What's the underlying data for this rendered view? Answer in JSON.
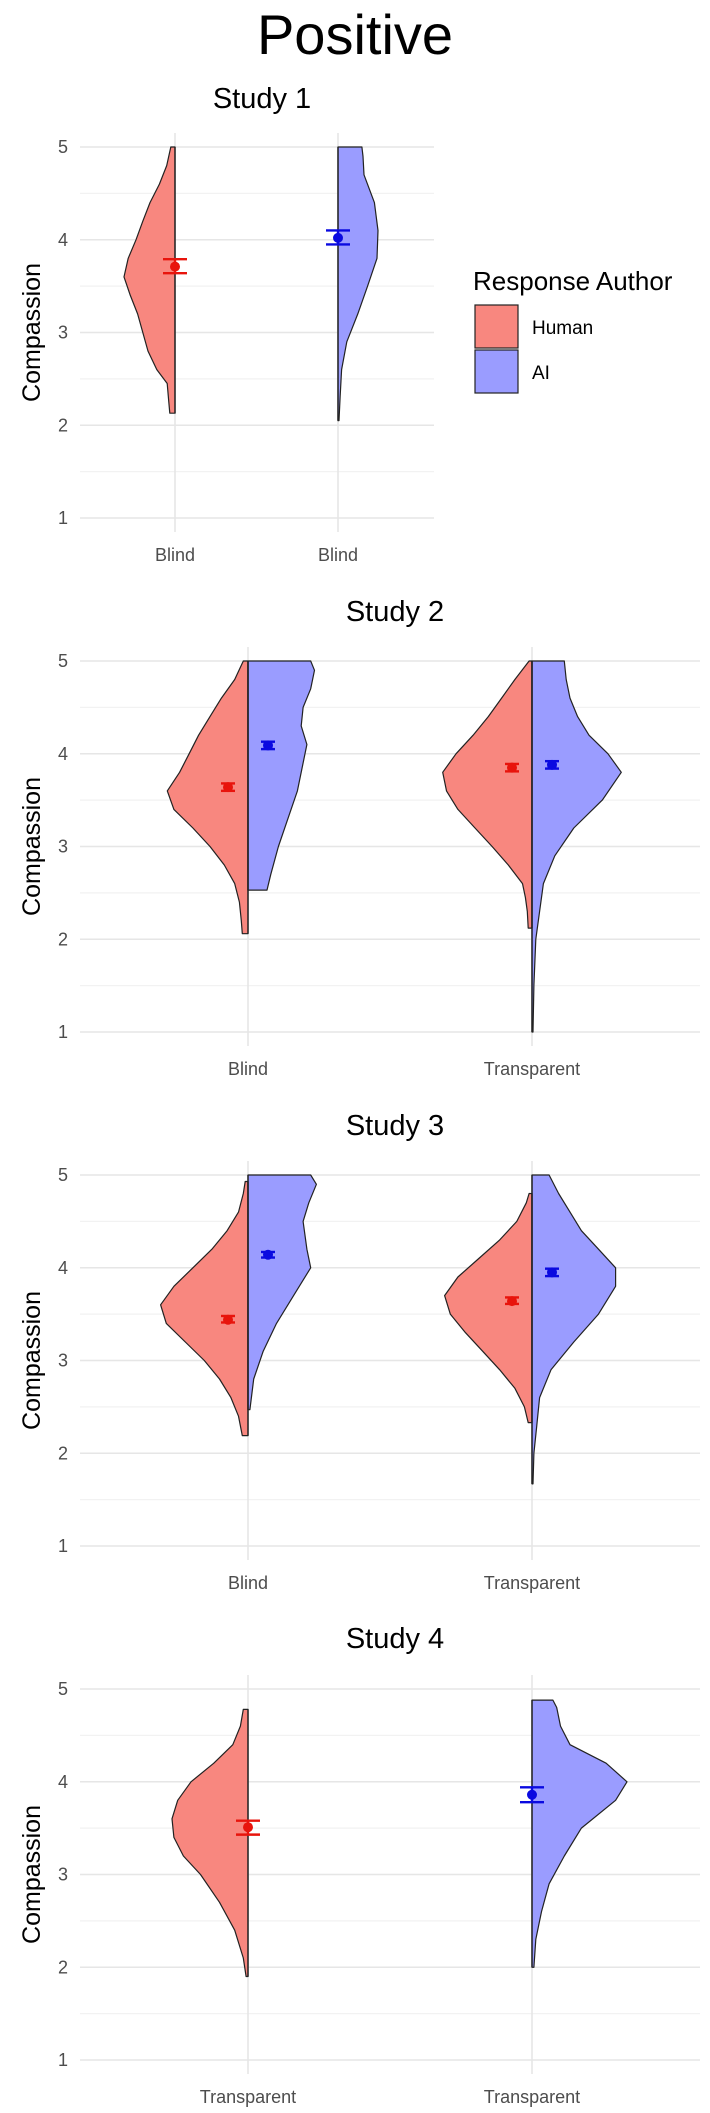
{
  "page_title": "Positive",
  "chart_data": [
    {
      "type": "split-violin",
      "title": "Study 1",
      "ylabel": "Compassion",
      "ylim": [
        1,
        5
      ],
      "yticks": [
        1,
        2,
        3,
        4,
        5
      ],
      "categories": [
        "Blind",
        "Blind"
      ],
      "groups": [
        {
          "name": "Human",
          "category_index": 0,
          "side": "left",
          "mean": 3.71,
          "ci": [
            3.64,
            3.79
          ],
          "ymin": 2.13,
          "ymax": 5.0,
          "profile": [
            [
              2.13,
              0.1
            ],
            [
              2.25,
              0.12
            ],
            [
              2.45,
              0.15
            ],
            [
              2.6,
              0.35
            ],
            [
              2.8,
              0.52
            ],
            [
              3.0,
              0.62
            ],
            [
              3.2,
              0.72
            ],
            [
              3.4,
              0.86
            ],
            [
              3.6,
              0.98
            ],
            [
              3.8,
              0.9
            ],
            [
              4.0,
              0.75
            ],
            [
              4.2,
              0.62
            ],
            [
              4.4,
              0.48
            ],
            [
              4.6,
              0.3
            ],
            [
              4.8,
              0.16
            ],
            [
              5.0,
              0.08
            ]
          ]
        },
        {
          "name": "AI",
          "category_index": 1,
          "side": "right",
          "mean": 4.02,
          "ci": [
            3.95,
            4.1
          ],
          "ymin": 2.05,
          "ymax": 5.0,
          "profile": [
            [
              2.05,
              0.02
            ],
            [
              2.3,
              0.04
            ],
            [
              2.6,
              0.07
            ],
            [
              2.9,
              0.17
            ],
            [
              3.2,
              0.38
            ],
            [
              3.5,
              0.57
            ],
            [
              3.8,
              0.75
            ],
            [
              4.1,
              0.77
            ],
            [
              4.4,
              0.7
            ],
            [
              4.7,
              0.5
            ],
            [
              4.9,
              0.48
            ],
            [
              5.0,
              0.46
            ]
          ]
        }
      ]
    },
    {
      "type": "split-violin",
      "title": "Study 2",
      "ylabel": "Compassion",
      "ylim": [
        1,
        5
      ],
      "yticks": [
        1,
        2,
        3,
        4,
        5
      ],
      "categories": [
        "Blind",
        "Transparent"
      ],
      "groups": [
        {
          "name": "Human",
          "category_index": 0,
          "side": "left",
          "mean": 3.64,
          "ci": [
            3.6,
            3.68
          ],
          "ymin": 2.06,
          "ymax": 5.0,
          "profile": [
            [
              2.06,
              0.06
            ],
            [
              2.2,
              0.07
            ],
            [
              2.4,
              0.09
            ],
            [
              2.6,
              0.14
            ],
            [
              2.8,
              0.25
            ],
            [
              3.0,
              0.4
            ],
            [
              3.2,
              0.58
            ],
            [
              3.4,
              0.78
            ],
            [
              3.6,
              0.85
            ],
            [
              3.8,
              0.72
            ],
            [
              4.0,
              0.62
            ],
            [
              4.2,
              0.52
            ],
            [
              4.4,
              0.4
            ],
            [
              4.6,
              0.28
            ],
            [
              4.8,
              0.14
            ],
            [
              5.0,
              0.05
            ]
          ]
        },
        {
          "name": "AI",
          "category_index": 0,
          "side": "right",
          "mean": 4.09,
          "ci": [
            4.05,
            4.13
          ],
          "ymin": 2.53,
          "ymax": 5.0,
          "profile": [
            [
              2.53,
              0.2
            ],
            [
              2.7,
              0.24
            ],
            [
              3.0,
              0.32
            ],
            [
              3.3,
              0.42
            ],
            [
              3.6,
              0.52
            ],
            [
              3.9,
              0.58
            ],
            [
              4.1,
              0.62
            ],
            [
              4.3,
              0.56
            ],
            [
              4.5,
              0.58
            ],
            [
              4.7,
              0.66
            ],
            [
              4.9,
              0.7
            ],
            [
              5.0,
              0.66
            ]
          ]
        },
        {
          "name": "Human",
          "category_index": 1,
          "side": "left",
          "mean": 3.85,
          "ci": [
            3.81,
            3.89
          ],
          "ymin": 2.12,
          "ymax": 5.0,
          "profile": [
            [
              2.12,
              0.04
            ],
            [
              2.3,
              0.05
            ],
            [
              2.45,
              0.07
            ],
            [
              2.6,
              0.1
            ],
            [
              2.8,
              0.25
            ],
            [
              3.0,
              0.42
            ],
            [
              3.2,
              0.6
            ],
            [
              3.4,
              0.78
            ],
            [
              3.6,
              0.9
            ],
            [
              3.8,
              0.94
            ],
            [
              4.0,
              0.8
            ],
            [
              4.2,
              0.62
            ],
            [
              4.4,
              0.46
            ],
            [
              4.6,
              0.32
            ],
            [
              4.8,
              0.18
            ],
            [
              5.0,
              0.03
            ]
          ]
        },
        {
          "name": "AI",
          "category_index": 1,
          "side": "right",
          "mean": 3.88,
          "ci": [
            3.84,
            3.92
          ],
          "ymin": 1.0,
          "ymax": 5.0,
          "profile": [
            [
              1.0,
              0.01
            ],
            [
              1.5,
              0.02
            ],
            [
              2.0,
              0.04
            ],
            [
              2.3,
              0.08
            ],
            [
              2.6,
              0.12
            ],
            [
              2.9,
              0.24
            ],
            [
              3.2,
              0.44
            ],
            [
              3.5,
              0.74
            ],
            [
              3.8,
              0.94
            ],
            [
              4.0,
              0.8
            ],
            [
              4.2,
              0.6
            ],
            [
              4.4,
              0.48
            ],
            [
              4.6,
              0.4
            ],
            [
              4.8,
              0.36
            ],
            [
              5.0,
              0.34
            ]
          ]
        }
      ]
    },
    {
      "type": "split-violin",
      "title": "Study 3",
      "ylabel": "Compassion",
      "ylim": [
        1,
        5
      ],
      "yticks": [
        1,
        2,
        3,
        4,
        5
      ],
      "categories": [
        "Blind",
        "Transparent"
      ],
      "groups": [
        {
          "name": "Human",
          "category_index": 0,
          "side": "left",
          "mean": 3.44,
          "ci": [
            3.41,
            3.48
          ],
          "ymin": 2.19,
          "ymax": 4.93,
          "profile": [
            [
              2.19,
              0.06
            ],
            [
              2.4,
              0.1
            ],
            [
              2.6,
              0.18
            ],
            [
              2.8,
              0.3
            ],
            [
              3.0,
              0.46
            ],
            [
              3.2,
              0.66
            ],
            [
              3.4,
              0.86
            ],
            [
              3.6,
              0.92
            ],
            [
              3.8,
              0.78
            ],
            [
              4.0,
              0.58
            ],
            [
              4.2,
              0.38
            ],
            [
              4.4,
              0.22
            ],
            [
              4.6,
              0.1
            ],
            [
              4.8,
              0.05
            ],
            [
              4.93,
              0.03
            ]
          ]
        },
        {
          "name": "AI",
          "category_index": 0,
          "side": "right",
          "mean": 4.14,
          "ci": [
            4.11,
            4.17
          ],
          "ymin": 2.47,
          "ymax": 5.0,
          "profile": [
            [
              2.47,
              0.02
            ],
            [
              2.8,
              0.06
            ],
            [
              3.1,
              0.16
            ],
            [
              3.4,
              0.3
            ],
            [
              3.7,
              0.48
            ],
            [
              4.0,
              0.66
            ],
            [
              4.2,
              0.62
            ],
            [
              4.5,
              0.58
            ],
            [
              4.7,
              0.64
            ],
            [
              4.9,
              0.72
            ],
            [
              5.0,
              0.66
            ]
          ]
        },
        {
          "name": "Human",
          "category_index": 1,
          "side": "left",
          "mean": 3.64,
          "ci": [
            3.61,
            3.68
          ],
          "ymin": 2.33,
          "ymax": 4.8,
          "profile": [
            [
              2.33,
              0.04
            ],
            [
              2.5,
              0.08
            ],
            [
              2.7,
              0.18
            ],
            [
              2.9,
              0.34
            ],
            [
              3.1,
              0.52
            ],
            [
              3.3,
              0.7
            ],
            [
              3.5,
              0.86
            ],
            [
              3.7,
              0.92
            ],
            [
              3.9,
              0.78
            ],
            [
              4.1,
              0.56
            ],
            [
              4.3,
              0.34
            ],
            [
              4.5,
              0.16
            ],
            [
              4.7,
              0.06
            ],
            [
              4.8,
              0.03
            ]
          ]
        },
        {
          "name": "AI",
          "category_index": 1,
          "side": "right",
          "mean": 3.95,
          "ci": [
            3.91,
            3.99
          ],
          "ymin": 1.67,
          "ymax": 5.0,
          "profile": [
            [
              1.67,
              0.01
            ],
            [
              2.0,
              0.02
            ],
            [
              2.3,
              0.05
            ],
            [
              2.6,
              0.08
            ],
            [
              2.9,
              0.2
            ],
            [
              3.2,
              0.44
            ],
            [
              3.5,
              0.7
            ],
            [
              3.8,
              0.88
            ],
            [
              4.0,
              0.88
            ],
            [
              4.2,
              0.7
            ],
            [
              4.4,
              0.52
            ],
            [
              4.6,
              0.4
            ],
            [
              4.8,
              0.28
            ],
            [
              5.0,
              0.18
            ]
          ]
        }
      ]
    },
    {
      "type": "split-violin",
      "title": "Study 4",
      "ylabel": "Compassion",
      "ylim": [
        1,
        5
      ],
      "yticks": [
        1,
        2,
        3,
        4,
        5
      ],
      "categories": [
        "Transparent",
        "Transparent"
      ],
      "groups": [
        {
          "name": "Human",
          "category_index": 0,
          "side": "left",
          "mean": 3.51,
          "ci": [
            3.43,
            3.58
          ],
          "ymin": 1.9,
          "ymax": 4.78,
          "profile": [
            [
              1.9,
              0.02
            ],
            [
              2.1,
              0.05
            ],
            [
              2.4,
              0.14
            ],
            [
              2.7,
              0.3
            ],
            [
              3.0,
              0.5
            ],
            [
              3.2,
              0.68
            ],
            [
              3.4,
              0.78
            ],
            [
              3.6,
              0.8
            ],
            [
              3.8,
              0.74
            ],
            [
              4.0,
              0.6
            ],
            [
              4.2,
              0.36
            ],
            [
              4.4,
              0.16
            ],
            [
              4.6,
              0.08
            ],
            [
              4.78,
              0.05
            ]
          ]
        },
        {
          "name": "AI",
          "category_index": 1,
          "side": "right",
          "mean": 3.86,
          "ci": [
            3.78,
            3.94
          ],
          "ymin": 2.0,
          "ymax": 4.88,
          "profile": [
            [
              2.0,
              0.02
            ],
            [
              2.3,
              0.04
            ],
            [
              2.6,
              0.1
            ],
            [
              2.9,
              0.18
            ],
            [
              3.2,
              0.34
            ],
            [
              3.5,
              0.52
            ],
            [
              3.8,
              0.88
            ],
            [
              4.0,
              1.0
            ],
            [
              4.2,
              0.78
            ],
            [
              4.4,
              0.4
            ],
            [
              4.6,
              0.3
            ],
            [
              4.8,
              0.26
            ],
            [
              4.88,
              0.22
            ]
          ]
        }
      ]
    }
  ],
  "legend": {
    "title": "Response Author",
    "items": [
      {
        "label": "Human",
        "color": "#f8877f"
      },
      {
        "label": "AI",
        "color": "#9a9cff"
      }
    ]
  },
  "colors": {
    "human_fill": "#f8877f",
    "ai_fill": "#9a9cff",
    "human_point": "#e8140c",
    "ai_point": "#0a0ae0"
  }
}
